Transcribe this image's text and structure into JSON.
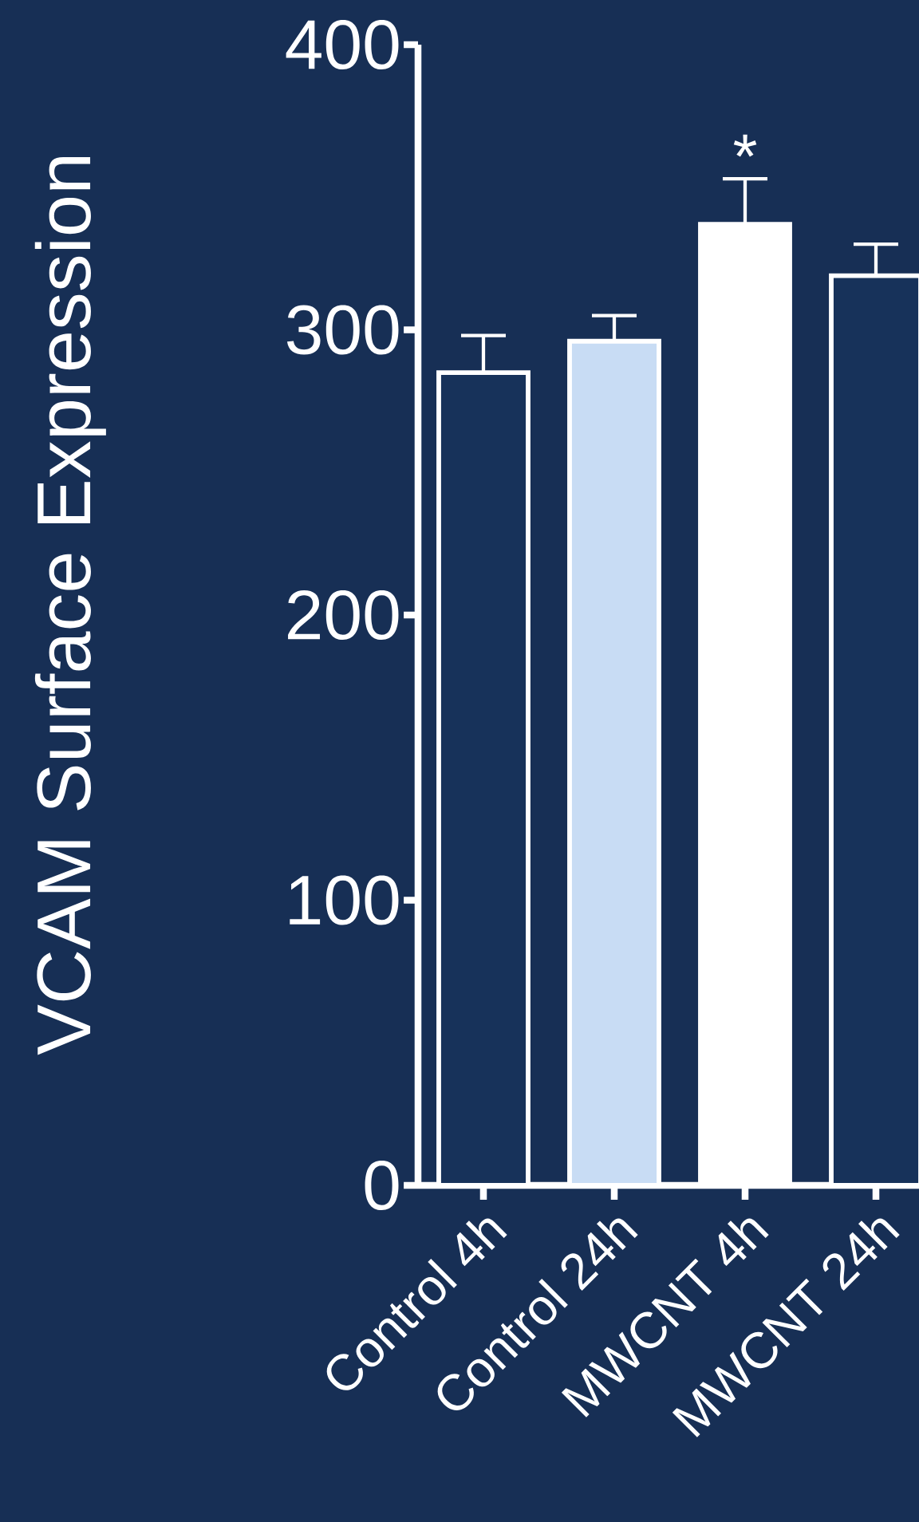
{
  "chart_data": {
    "type": "bar",
    "ylabel": "VCAM Surface  Expression",
    "categories": [
      "Control 4h",
      "Control 24h",
      "MWCNT 4h",
      "MWCNT 24h"
    ],
    "values": [
      285,
      296,
      337,
      319
    ],
    "errors": [
      [
        285,
        298
      ],
      [
        296,
        305
      ],
      [
        337,
        353
      ],
      [
        319,
        330
      ]
    ],
    "colors": [
      "#17325a",
      "#c8dcf4",
      "#ffffff",
      "#17325a"
    ],
    "ylim": [
      0,
      400
    ],
    "yticks": [
      0,
      100,
      200,
      300,
      400
    ],
    "annotations": [
      {
        "text": "*",
        "x": "MWCNT 4h",
        "y": 353
      }
    ]
  }
}
